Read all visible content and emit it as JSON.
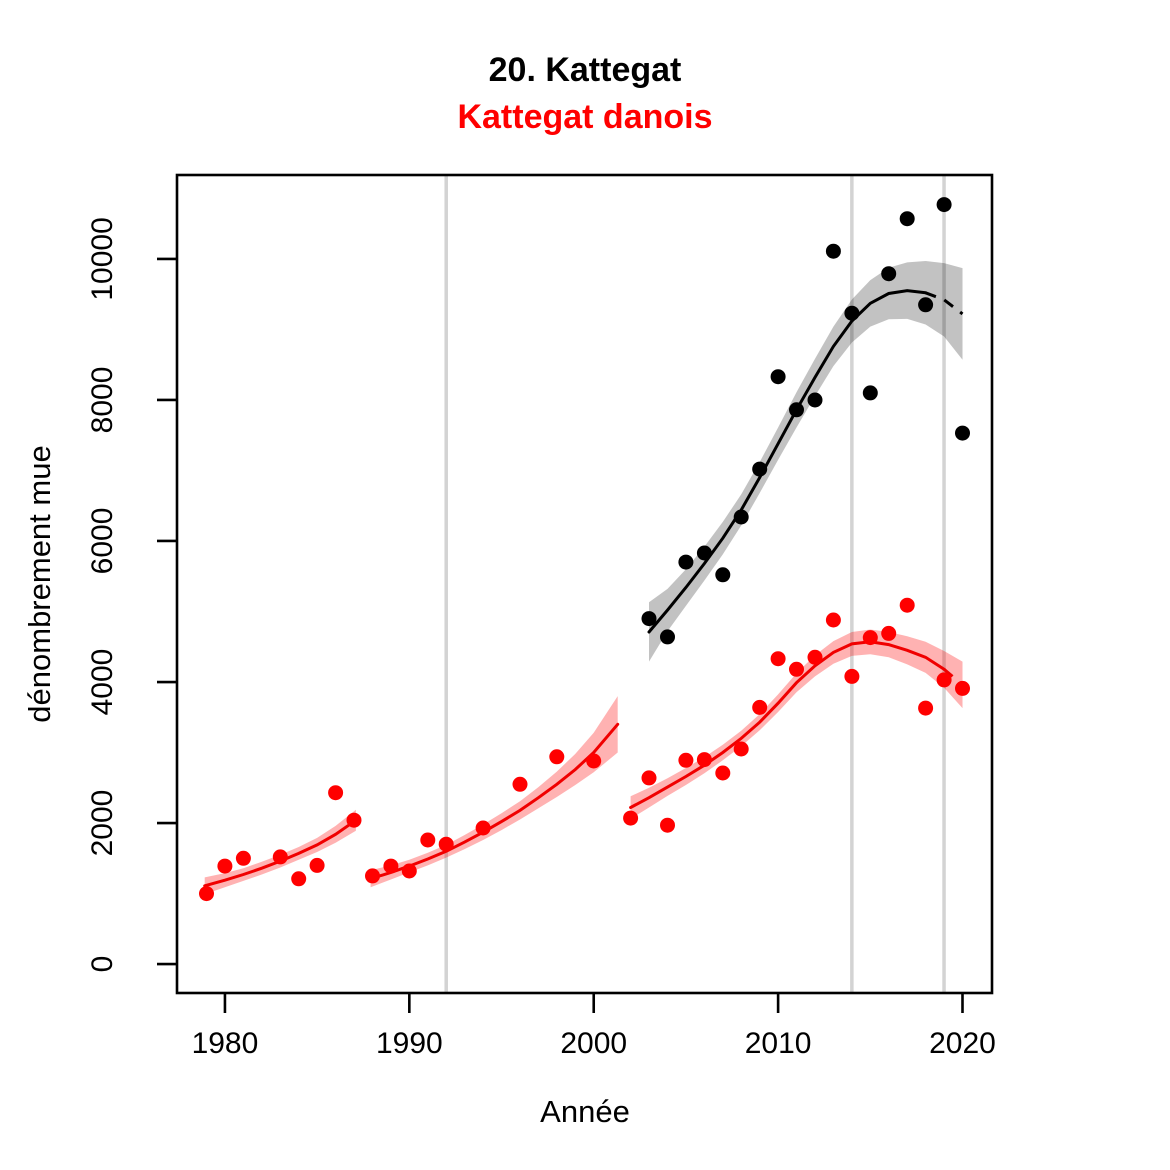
{
  "title": "20. Kattegat",
  "subtitle": "Kattegat danois",
  "colors": {
    "title": "#000000",
    "subtitle": "#ff0000",
    "red_series": "#ff0000",
    "red_line": "#f00000",
    "red_band": "rgba(255,0,0,0.30)",
    "black_series": "#000000",
    "black_line": "#000000",
    "black_band": "rgba(0,0,0,0.24)",
    "reference_line": "#d3d3d3",
    "axis": "#000000"
  },
  "chart_data": {
    "type": "scatter",
    "title": "20. Kattegat",
    "subtitle": "Kattegat danois",
    "xlabel": "Année",
    "ylabel": "dénombrement mue",
    "xlim": [
      1977.4,
      2021.6
    ],
    "ylim": [
      -410,
      11190
    ],
    "x_ticks": [
      1980,
      1990,
      2000,
      2010,
      2020
    ],
    "x_tick_labels": [
      "1980",
      "1990",
      "2000",
      "2010",
      "2020"
    ],
    "y_ticks": [
      0,
      2000,
      4000,
      6000,
      8000,
      10000
    ],
    "y_tick_labels": [
      "0",
      "2000",
      "4000",
      "6000",
      "8000",
      "10000"
    ],
    "grid": false,
    "legend": "none",
    "reference_vlines": [
      1992,
      2014,
      2019
    ],
    "series": [
      {
        "name": "mue-rouge",
        "point_color": "#ff0000",
        "line_color": "#f00000",
        "band_fill": "rgba(255,0,0,0.30)",
        "points": {
          "x": [
            1979,
            1980,
            1981,
            1983,
            1984,
            1985,
            1986,
            1987,
            1988,
            1989,
            1990,
            1991,
            1992,
            1994,
            1996,
            1998,
            2000,
            2002,
            2003,
            2004,
            2005,
            2006,
            2007,
            2008,
            2009,
            2010,
            2011,
            2012,
            2013,
            2014,
            2015,
            2016,
            2017,
            2018,
            2019,
            2020
          ],
          "y": [
            1000,
            1390,
            1500,
            1520,
            1210,
            1400,
            2430,
            2040,
            1250,
            1390,
            1320,
            1760,
            1700,
            1930,
            2550,
            2940,
            2880,
            2070,
            2640,
            1970,
            2890,
            2900,
            2710,
            3050,
            3640,
            4330,
            4180,
            4350,
            4880,
            4080,
            4630,
            4690,
            5090,
            3630,
            4030,
            3910
          ]
        },
        "trend_segments": [
          {
            "x": [
              1978.9,
              1980,
              1981,
              1982,
              1983,
              1984,
              1985,
              1986,
              1987.1
            ],
            "fit": [
              1110,
              1190,
              1270,
              1360,
              1460,
              1570,
              1690,
              1840,
              2040
            ],
            "lo": [
              990,
              1090,
              1180,
              1270,
              1370,
              1480,
              1590,
              1720,
              1890
            ],
            "hi": [
              1230,
              1290,
              1360,
              1450,
              1550,
              1660,
              1790,
              1960,
              2190
            ],
            "dash_from_x": null
          },
          {
            "x": [
              1987.9,
              1989,
              1990,
              1991,
              1992,
              1993,
              1994,
              1995,
              1996,
              1997,
              1998,
              1999,
              2000,
              2001.3
            ],
            "fit": [
              1210,
              1300,
              1390,
              1490,
              1600,
              1730,
              1870,
              2020,
              2180,
              2360,
              2550,
              2760,
              3000,
              3400
            ],
            "lo": [
              1090,
              1200,
              1300,
              1400,
              1510,
              1630,
              1760,
              1900,
              2050,
              2210,
              2370,
              2540,
              2720,
              3000
            ],
            "hi": [
              1330,
              1400,
              1480,
              1580,
              1690,
              1830,
              1980,
              2140,
              2310,
              2510,
              2730,
              2980,
              3280,
              3800
            ],
            "dash_from_x": null
          },
          {
            "x": [
              2002,
              2003,
              2004,
              2005,
              2006,
              2007,
              2008,
              2009,
              2010,
              2011,
              2012,
              2013,
              2014,
              2015,
              2016,
              2017,
              2018,
              2019,
              2020
            ],
            "fit": [
              2220,
              2360,
              2510,
              2660,
              2820,
              3000,
              3200,
              3430,
              3700,
              3990,
              4230,
              4420,
              4540,
              4570,
              4530,
              4450,
              4350,
              4180,
              3960
            ],
            "lo": [
              2060,
              2220,
              2385,
              2540,
              2705,
              2890,
              3090,
              3315,
              3575,
              3855,
              4080,
              4260,
              4370,
              4395,
              4350,
              4250,
              4130,
              3920,
              3630
            ],
            "hi": [
              2380,
              2500,
              2635,
              2780,
              2935,
              3110,
              3310,
              3545,
              3825,
              4125,
              4380,
              4580,
              4710,
              4745,
              4710,
              4650,
              4570,
              4440,
              4290
            ],
            "dash_from_x": 2019
          }
        ]
      },
      {
        "name": "denombrement-noir",
        "point_color": "#000000",
        "line_color": "#000000",
        "band_fill": "rgba(0,0,0,0.24)",
        "points": {
          "x": [
            2003,
            2004,
            2005,
            2006,
            2007,
            2008,
            2009,
            2010,
            2011,
            2012,
            2013,
            2014,
            2015,
            2016,
            2017,
            2018,
            2019,
            2020
          ],
          "y": [
            4900,
            4640,
            5700,
            5830,
            5520,
            6340,
            7020,
            8330,
            7860,
            8000,
            10110,
            9230,
            8100,
            9790,
            10570,
            9350,
            10770,
            7530
          ]
        },
        "trend_segments": [
          {
            "x": [
              2003,
              2004,
              2005,
              2006,
              2007,
              2008,
              2009,
              2010,
              2011,
              2012,
              2013,
              2014,
              2015,
              2016,
              2017,
              2018,
              2019,
              2020
            ],
            "fit": [
              4710,
              5020,
              5340,
              5680,
              6040,
              6440,
              6900,
              7380,
              7860,
              8320,
              8760,
              9120,
              9370,
              9510,
              9550,
              9520,
              9420,
              9220
            ],
            "lo": [
              4290,
              4720,
              5080,
              5440,
              5810,
              6220,
              6680,
              7150,
              7610,
              8055,
              8480,
              8815,
              9040,
              9145,
              9150,
              9070,
              8900,
              8570
            ],
            "hi": [
              5130,
              5320,
              5600,
              5920,
              6270,
              6660,
              7120,
              7610,
              8110,
              8585,
              9040,
              9425,
              9700,
              9875,
              9950,
              9970,
              9940,
              9870
            ],
            "dash_from_x": 2018
          }
        ]
      }
    ]
  }
}
